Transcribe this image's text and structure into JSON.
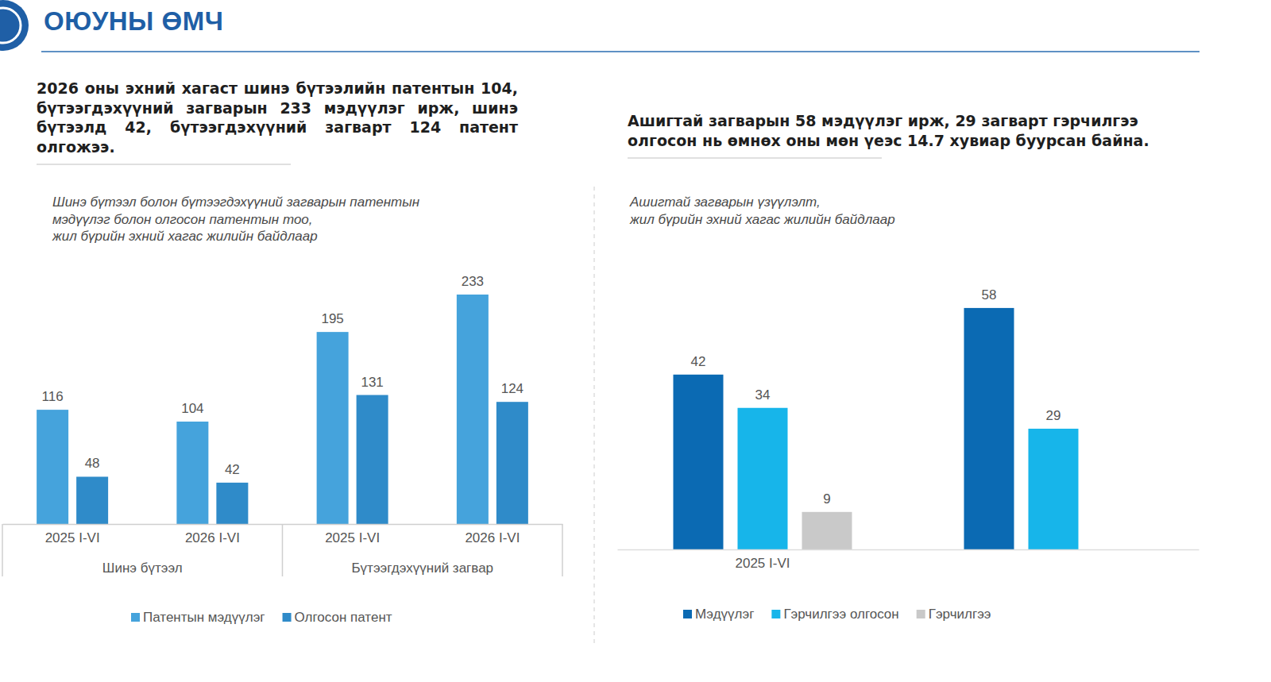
{
  "header": {
    "title": "ОЮУНЫ ӨМЧ"
  },
  "chart_data": [
    {
      "type": "bar",
      "title": "2026 оны эхний хагаст шинэ бүтээлийн патентын 104, бүтээгдэхүүний загварын 233 мэдүүлэг ирж, шинэ бүтээлд 42, бүтээгдэхүүний загварт 124 патент олгожээ.",
      "subtitle": [
        "Шинэ бүтээл болон бүтээгдэхүүний загварын патентын",
        "мэдүүлэг болон олгосон патентын тоо,",
        "жил бүрийн эхний хагас жилийн байдлаар"
      ],
      "categories": [
        "2025 I-VI",
        "2026 I-VI",
        "2025 I-VI",
        "2026 I-VI"
      ],
      "category_groups": [
        "Шинэ бүтээл",
        "Шинэ бүтээл",
        "Бүтээгдэхүүний загвар",
        "Бүтээгдэхүүний загвар"
      ],
      "series": [
        {
          "name": "Патентын мэдүүлэг",
          "color": "#45a3dc",
          "values": [
            116,
            104,
            195,
            233
          ]
        },
        {
          "name": "Олгосон патент",
          "color": "#2f8bc9",
          "values": [
            48,
            42,
            131,
            124
          ]
        }
      ],
      "ylim": [
        0,
        260
      ],
      "grid": false,
      "data_labels": true,
      "tick_labels": "x",
      "legend": "bottom"
    },
    {
      "type": "bar",
      "title": "Ашигтай загварын 58 мэдүүлэг ирж, 29 загварт гэрчилгээ олгосон нь өмнөх оны мөн үеэс 14.7 хувиар буурсан байна.",
      "subtitle": [
        "Ашигтай загварын үзүүлэлт,",
        "жил бүрийн эхний хагас жилийн байдлаар"
      ],
      "categories": [
        "2025 I-VI",
        null
      ],
      "series": [
        {
          "name": "Мэдүүлэг",
          "color": "#0b6ab3",
          "values": [
            42,
            58
          ]
        },
        {
          "name": "Гэрчилгээ олгосон",
          "color": "#17b5ea",
          "values": [
            34,
            29
          ]
        },
        {
          "name": "Гэрчилгээ",
          "color": "#c9c9c9",
          "values": [
            9,
            null
          ]
        }
      ],
      "ylim": [
        0,
        70
      ],
      "grid": false,
      "data_labels": true,
      "tick_labels": "x",
      "legend": "bottom"
    }
  ]
}
